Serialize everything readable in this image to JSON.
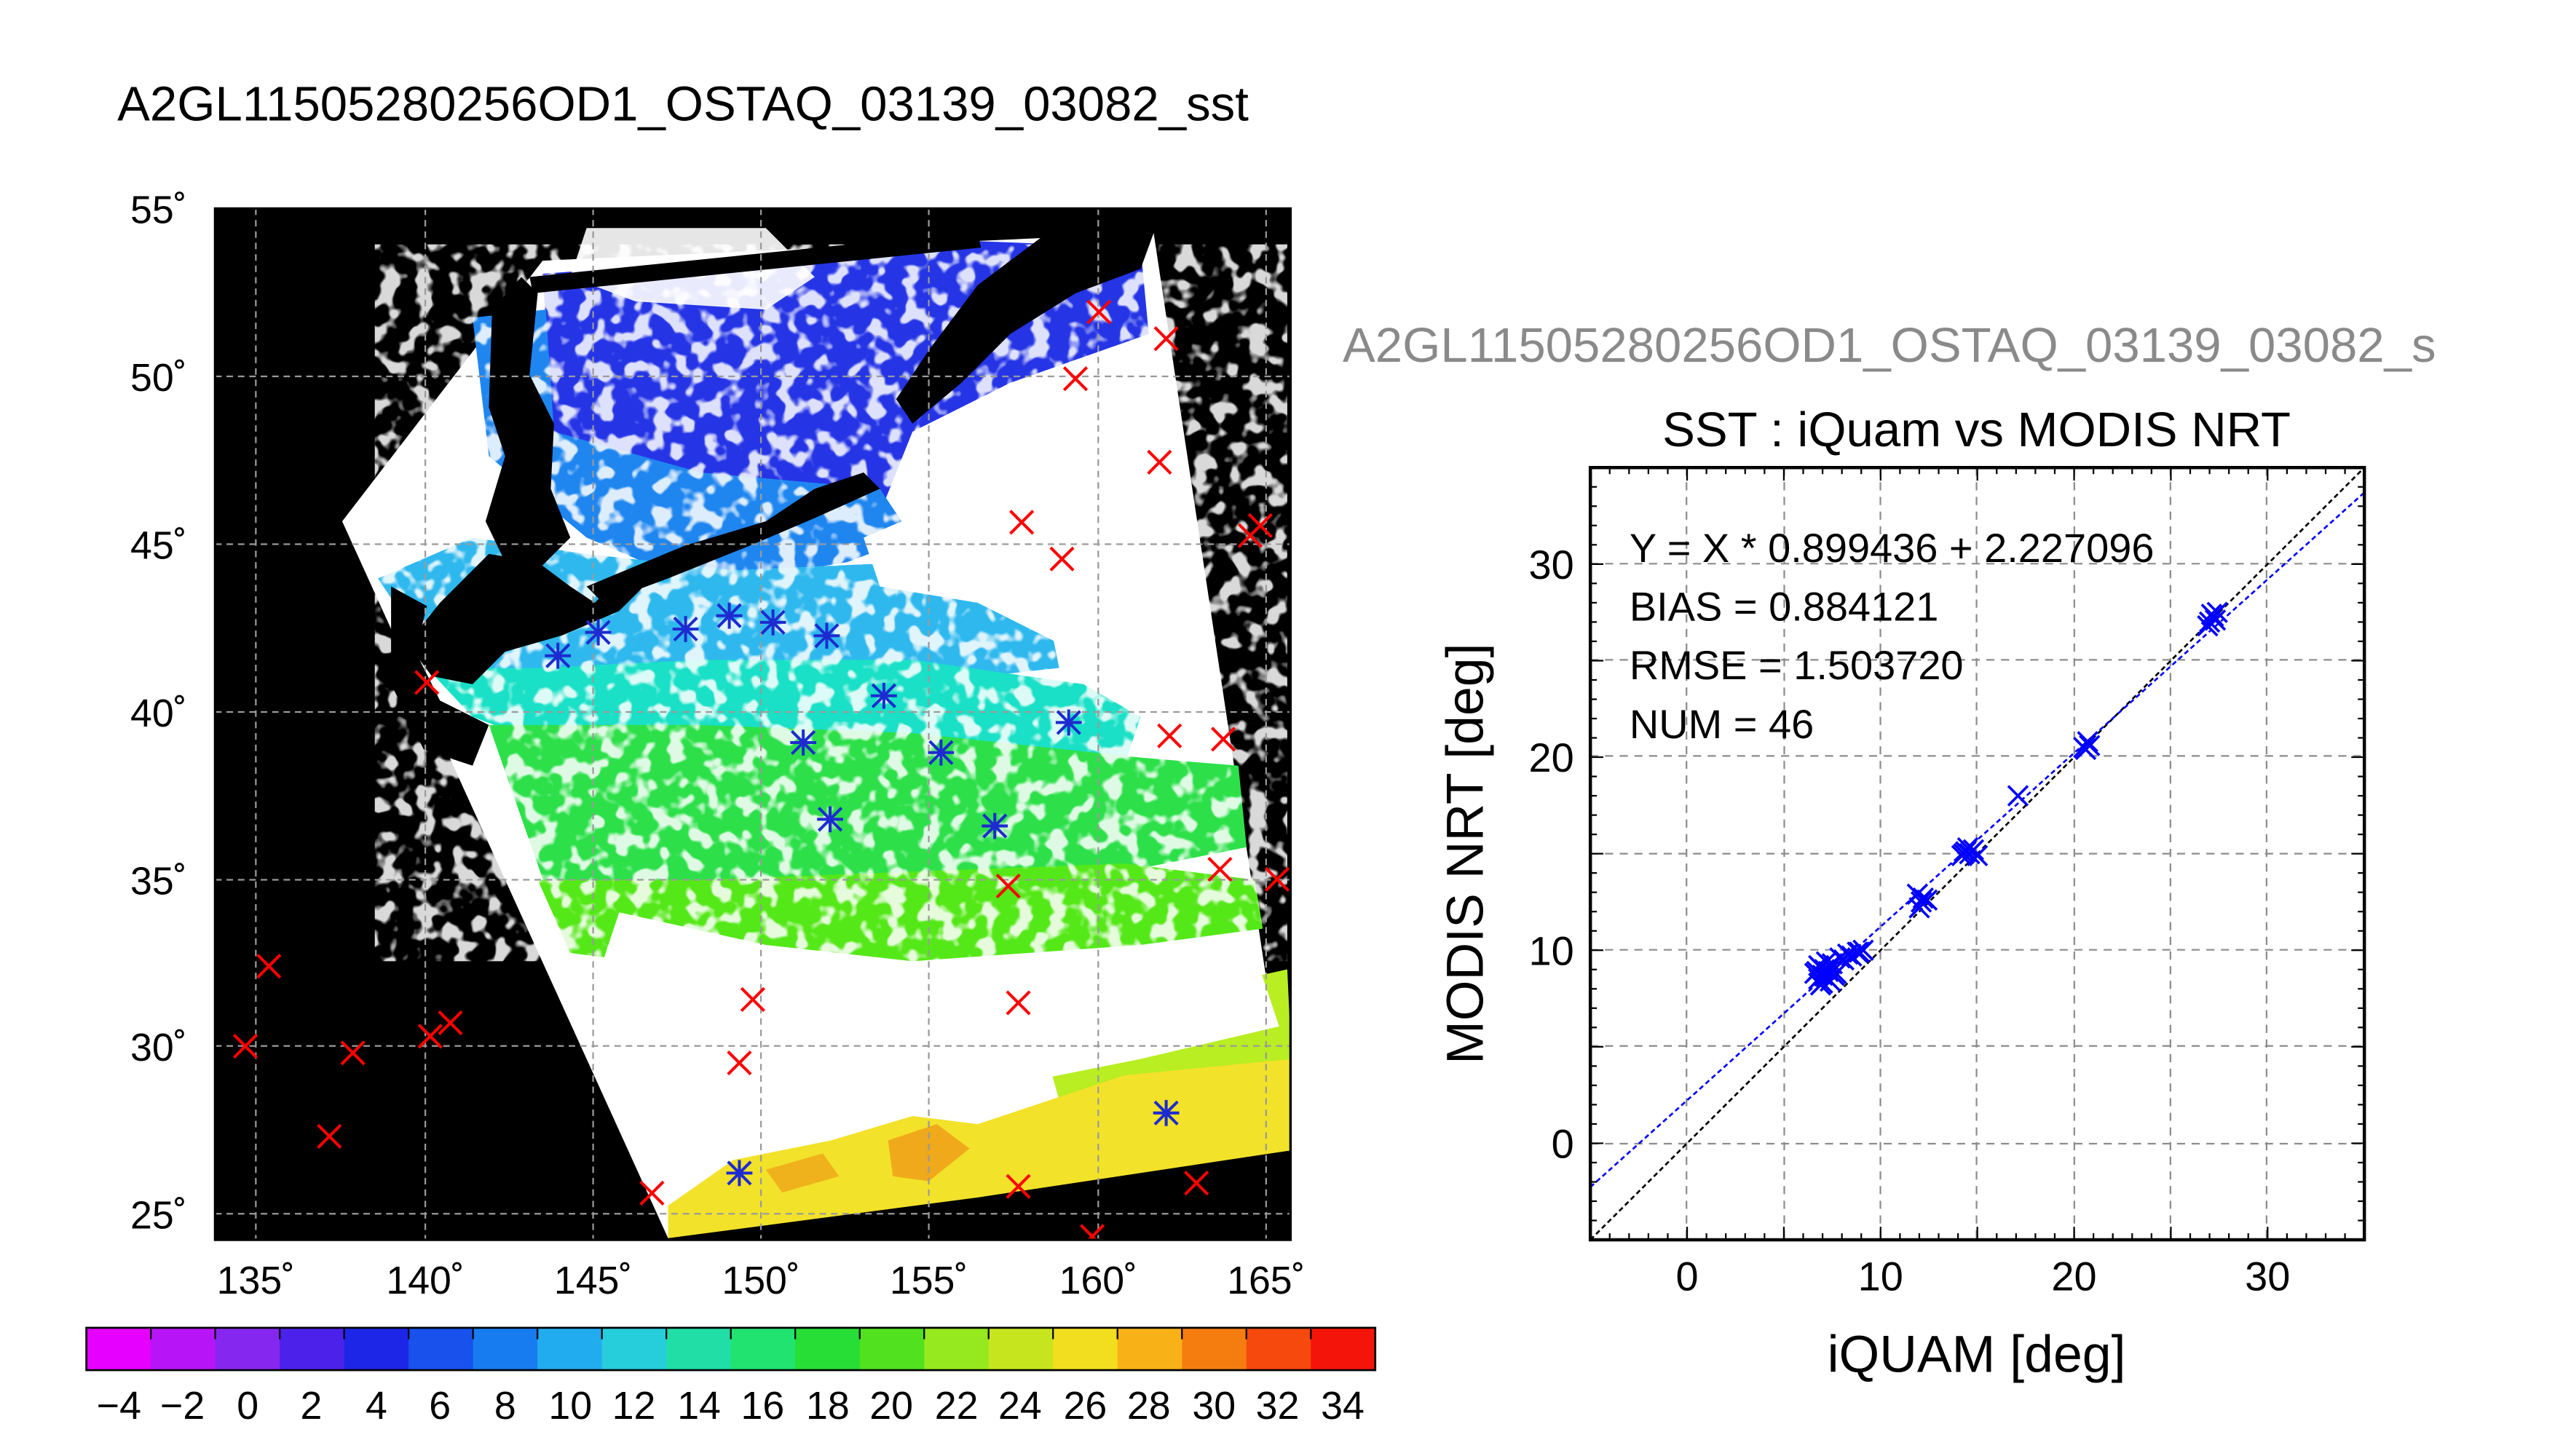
{
  "map_panel": {
    "title": "A2GL11505280256OD1_OSTAQ_03139_03082_sst",
    "lon_ticks": [
      "135˚",
      "140˚",
      "145˚",
      "150˚",
      "155˚",
      "160˚",
      "165˚"
    ],
    "lat_ticks": [
      "25˚",
      "30˚",
      "35˚",
      "40˚",
      "45˚",
      "50˚",
      "55˚"
    ],
    "colorbar_ticks": [
      "−4",
      "−2",
      "0",
      "2",
      "4",
      "6",
      "8",
      "10",
      "12",
      "14",
      "16",
      "18",
      "20",
      "22",
      "24",
      "26",
      "28",
      "30",
      "32",
      "34"
    ]
  },
  "scatter_panel": {
    "header": "A2GL11505280256OD1_OSTAQ_03139_03082_s",
    "title": "SST : iQuam vs MODIS NRT",
    "stats": {
      "fit": "Y = X * 0.899436 + 2.227096",
      "bias": "BIAS = 0.884121",
      "rmse": "RMSE = 1.503720",
      "num": "NUM = 46"
    }
  },
  "chart_data": [
    {
      "type": "scatter",
      "title": "A2GL11505280256OD1_OSTAQ_03139_03082_sst",
      "xlabel": "",
      "ylabel": "",
      "xlim": [
        133.5,
        165.5
      ],
      "ylim": [
        24.3,
        55.2
      ],
      "x_ticks": [
        135,
        140,
        145,
        150,
        155,
        160,
        165
      ],
      "y_ticks": [
        25,
        30,
        35,
        40,
        45,
        50,
        55
      ],
      "grid": true,
      "background": "#000000",
      "colorbar": {
        "min": -5,
        "max": 35,
        "step": 2,
        "ticks": [
          -4,
          -2,
          0,
          2,
          4,
          6,
          8,
          10,
          12,
          14,
          16,
          18,
          20,
          22,
          24,
          26,
          28,
          30,
          32,
          34
        ]
      },
      "series": [
        {
          "marker": "x",
          "color": "#ff0000",
          "points": [
            [
              159.8,
              52.1
            ],
            [
              161.8,
              51.3
            ],
            [
              159.1,
              50.1
            ],
            [
              161.6,
              47.6
            ],
            [
              157.5,
              45.8
            ],
            [
              158.7,
              44.7
            ],
            [
              164.6,
              45.7
            ],
            [
              164.3,
              45.4
            ],
            [
              139.8,
              41.0
            ],
            [
              161.9,
              39.4
            ],
            [
              163.5,
              39.3
            ],
            [
              163.4,
              35.4
            ],
            [
              165.1,
              35.1
            ],
            [
              157.1,
              34.9
            ],
            [
              135.1,
              32.5
            ],
            [
              149.5,
              31.5
            ],
            [
              157.4,
              31.4
            ],
            [
              134.4,
              30.1
            ],
            [
              137.6,
              29.9
            ],
            [
              139.9,
              30.4
            ],
            [
              140.5,
              30.8
            ],
            [
              149.1,
              29.6
            ],
            [
              136.9,
              27.4
            ],
            [
              146.5,
              25.7
            ],
            [
              157.4,
              25.9
            ],
            [
              162.7,
              26.0
            ],
            [
              159.6,
              24.4
            ]
          ]
        },
        {
          "marker": "asterisk",
          "color": "#1d2bd0",
          "points": [
            [
              143.7,
              41.8
            ],
            [
              144.9,
              42.5
            ],
            [
              147.5,
              42.6
            ],
            [
              148.8,
              43.0
            ],
            [
              150.1,
              42.8
            ],
            [
              151.7,
              42.4
            ],
            [
              153.4,
              40.6
            ],
            [
              158.9,
              39.8
            ],
            [
              151.0,
              39.2
            ],
            [
              155.1,
              38.9
            ],
            [
              151.8,
              36.9
            ],
            [
              156.7,
              36.7
            ],
            [
              161.8,
              28.1
            ],
            [
              149.1,
              26.3
            ]
          ]
        }
      ]
    },
    {
      "type": "scatter",
      "title": "SST : iQuam vs MODIS NRT",
      "xlabel": "iQUAM [deg]",
      "ylabel": "MODIS NRT [deg]",
      "xlim": [
        -5,
        35
      ],
      "ylim": [
        -5,
        35
      ],
      "x_ticks": [
        0,
        10,
        20,
        30
      ],
      "y_ticks": [
        0,
        10,
        20,
        30
      ],
      "grid": true,
      "fit_line": {
        "slope": 0.899436,
        "intercept": 2.227096,
        "color": "#0000ff"
      },
      "reference_line": {
        "slope": 1,
        "intercept": 0,
        "color": "#000000"
      },
      "series": [
        {
          "marker": "x",
          "color": "#0000ff",
          "x": [
            6.6,
            6.8,
            6.9,
            7.0,
            7.1,
            7.2,
            7.3,
            7.0,
            6.8,
            7.5,
            7.4,
            8.1,
            8.5,
            8.8,
            9.1,
            7.7,
            7.2,
            6.9,
            11.9,
            12.1,
            12.0,
            12.2,
            14.2,
            14.4,
            14.6,
            14.8,
            15.0,
            14.5,
            17.1,
            20.6,
            20.8,
            20.7,
            27.0,
            27.2,
            27.4,
            27.3,
            26.9,
            7.9,
            8.3,
            12.4,
            14.3,
            27.1,
            6.7,
            7.6,
            8.9,
            20.5
          ],
          "y": [
            8.8,
            8.5,
            9.1,
            8.7,
            9.0,
            8.6,
            8.9,
            8.3,
            9.2,
            9.3,
            8.4,
            9.5,
            9.7,
            9.9,
            10.0,
            8.8,
            9.4,
            8.2,
            12.9,
            12.5,
            12.2,
            12.7,
            14.9,
            15.1,
            15.0,
            15.2,
            14.9,
            15.3,
            18.0,
            20.4,
            20.6,
            20.8,
            27.0,
            27.3,
            27.5,
            27.1,
            26.8,
            9.6,
            9.8,
            12.6,
            15.0,
            27.4,
            8.9,
            8.7,
            9.9,
            20.5
          ]
        }
      ]
    }
  ]
}
